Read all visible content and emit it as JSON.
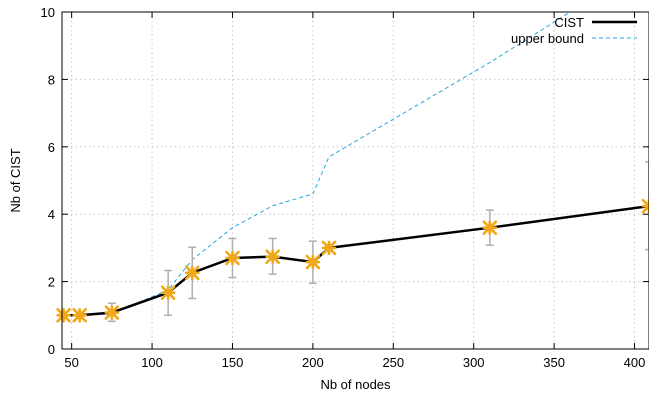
{
  "chart_data": {
    "type": "line",
    "xlabel": "Nb of nodes",
    "ylabel": "Nb of CIST",
    "xlim": [
      44,
      409
    ],
    "ylim": [
      0,
      10
    ],
    "xticks": [
      50,
      100,
      150,
      200,
      250,
      300,
      350,
      400
    ],
    "yticks": [
      0,
      2,
      4,
      6,
      8,
      10
    ],
    "grid": true,
    "legend_position": "top-right",
    "series": [
      {
        "name": "CIST",
        "color": "#000000",
        "marker_color": "#f0a818",
        "errorbar_color": "#b0b0b0",
        "x": [
          45,
          55,
          75,
          110,
          125,
          150,
          175,
          200,
          210,
          310,
          409
        ],
        "y": [
          1.0,
          1.0,
          1.08,
          1.67,
          2.26,
          2.7,
          2.74,
          2.58,
          3.0,
          3.6,
          4.24
        ],
        "err_low": [
          0.98,
          0.98,
          0.82,
          1.0,
          1.5,
          2.12,
          2.22,
          1.95,
          2.95,
          3.08,
          2.95
        ],
        "err_high": [
          1.02,
          1.02,
          1.36,
          2.33,
          3.02,
          3.28,
          3.28,
          3.2,
          3.05,
          4.12,
          5.55
        ]
      },
      {
        "name": "upper bound",
        "color": "#2aa7df",
        "dashed": true,
        "x": [
          45,
          55,
          75,
          110,
          125,
          150,
          175,
          200,
          210,
          310,
          360
        ],
        "y": [
          1.0,
          1.0,
          1.05,
          1.75,
          2.65,
          3.6,
          4.25,
          4.6,
          5.7,
          8.5,
          10.0
        ]
      }
    ]
  }
}
